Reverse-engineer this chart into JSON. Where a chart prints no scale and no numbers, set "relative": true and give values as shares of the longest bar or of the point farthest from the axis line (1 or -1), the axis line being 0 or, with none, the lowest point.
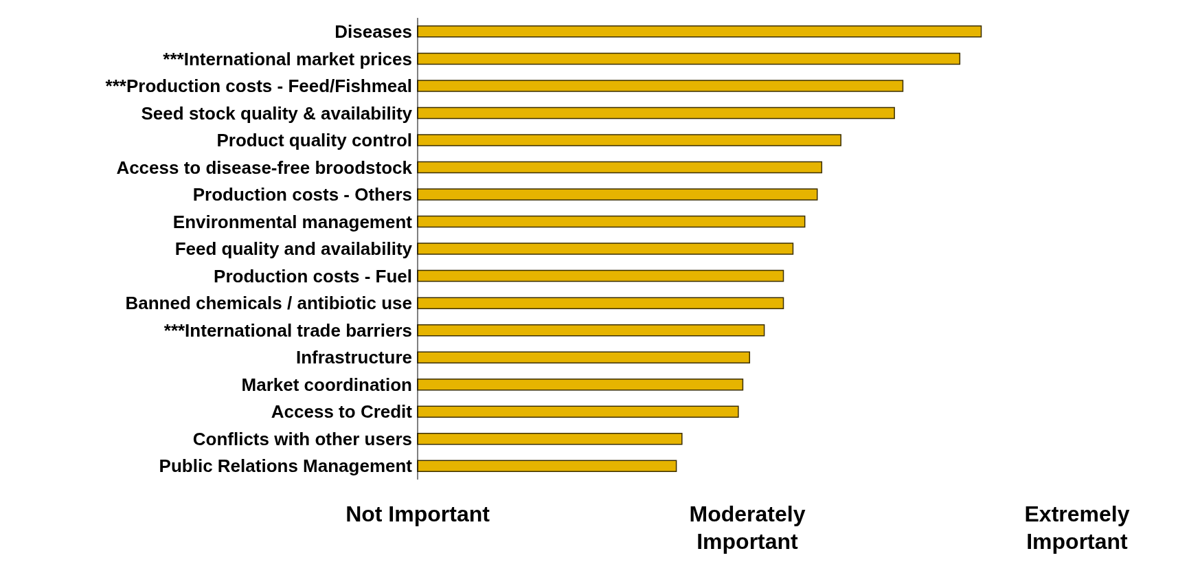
{
  "chart_data": {
    "type": "bar",
    "orientation": "horizontal",
    "relative": true,
    "categories": [
      "Diseases",
      "***International market prices",
      "***Production costs - Feed/Fishmeal",
      "Seed stock quality & availability",
      "Product quality control",
      "Access to disease-free broodstock",
      "Production costs - Others",
      "Environmental management",
      "Feed quality and availability",
      "Production costs - Fuel",
      "Banned chemicals / antibiotic use",
      "***International trade barriers",
      "Infrastructure",
      "Market coordination",
      "Access to Credit",
      "Conflicts with other users",
      "Public Relations Management"
    ],
    "values": [
      1,
      0.962,
      0.861,
      0.846,
      0.751,
      0.717,
      0.709,
      0.687,
      0.666,
      0.649,
      0.649,
      0.615,
      0.589,
      0.577,
      0.569,
      0.469,
      0.459
    ],
    "color": "#e6b400",
    "annotations": [
      "Not Important",
      "Moderately Important",
      "Extremely Important"
    ]
  }
}
